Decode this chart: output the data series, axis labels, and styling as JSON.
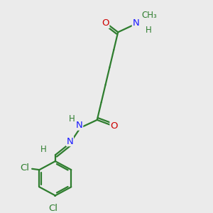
{
  "bg_color": "#ebebeb",
  "bond_color": "#2e7d2e",
  "bond_width": 1.6,
  "atom_colors": {
    "O": "#cc0000",
    "N": "#1a1aff",
    "Cl": "#2e7d2e",
    "C": "#2e7d2e",
    "H": "#2e7d2e"
  },
  "font_size": 9.5,
  "font_size_small": 8.5
}
